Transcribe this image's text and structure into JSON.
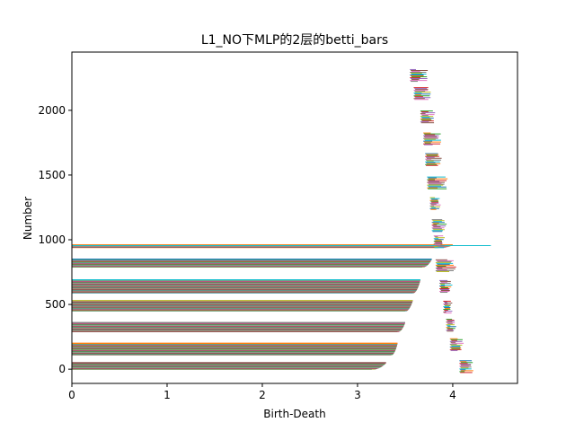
{
  "chart_data": {
    "type": "bar",
    "orientation": "horizontal",
    "title": "L1_NO下MLP的2层的betti_bars",
    "xlabel": "Birth-Death",
    "ylabel": "Number",
    "xlim": [
      0,
      4.68
    ],
    "ylim": [
      -110,
      2450
    ],
    "xticks": [
      0,
      1,
      2,
      3,
      4
    ],
    "yticks": [
      0,
      500,
      1000,
      1500,
      2000
    ],
    "grid": false,
    "legend": "none",
    "series_colors": [
      "#1f77b4",
      "#ff7f0e",
      "#2ca02c",
      "#d62728",
      "#9467bd",
      "#8c564b",
      "#e377c2",
      "#7f7f7f",
      "#bcbd22",
      "#17becf"
    ],
    "bands": [
      {
        "y_start": 0,
        "y_end": 50,
        "x_start": 0,
        "x_end_min": 3.15,
        "x_end_max": 3.3
      },
      {
        "y_start": 110,
        "y_end": 200,
        "x_start": 0,
        "x_end_min": 3.35,
        "x_end_max": 3.42
      },
      {
        "y_start": 290,
        "y_end": 360,
        "x_start": 0,
        "x_end_min": 3.42,
        "x_end_max": 3.5
      },
      {
        "y_start": 450,
        "y_end": 530,
        "x_start": 0,
        "x_end_min": 3.5,
        "x_end_max": 3.58
      },
      {
        "y_start": 590,
        "y_end": 690,
        "x_start": 0,
        "x_end_min": 3.58,
        "x_end_max": 3.66
      },
      {
        "y_start": 790,
        "y_end": 850,
        "x_start": 0,
        "x_end_min": 3.68,
        "x_end_max": 3.78
      },
      {
        "y_start": 940,
        "y_end": 960,
        "x_start": 0,
        "x_end_min": 3.85,
        "x_end_max": 4.0
      }
    ],
    "outlier_bar": {
      "y": 955,
      "x_start": 0,
      "x_end": 4.4
    },
    "short_bar_clusters": [
      {
        "y": 20,
        "x_start": 4.07,
        "x_end": 4.2
      },
      {
        "y": 190,
        "x_start": 3.97,
        "x_end": 4.1
      },
      {
        "y": 340,
        "x_start": 3.93,
        "x_end": 4.02
      },
      {
        "y": 480,
        "x_start": 3.9,
        "x_end": 3.98
      },
      {
        "y": 640,
        "x_start": 3.86,
        "x_end": 3.98
      },
      {
        "y": 800,
        "x_start": 3.82,
        "x_end": 4.02
      },
      {
        "y": 985,
        "x_start": 3.8,
        "x_end": 3.9
      },
      {
        "y": 1110,
        "x_start": 3.78,
        "x_end": 3.92
      },
      {
        "y": 1280,
        "x_start": 3.76,
        "x_end": 3.86
      },
      {
        "y": 1440,
        "x_start": 3.73,
        "x_end": 3.93
      },
      {
        "y": 1620,
        "x_start": 3.71,
        "x_end": 3.87
      },
      {
        "y": 1780,
        "x_start": 3.69,
        "x_end": 3.87
      },
      {
        "y": 1950,
        "x_start": 3.66,
        "x_end": 3.8
      },
      {
        "y": 2130,
        "x_start": 3.59,
        "x_end": 3.76
      },
      {
        "y": 2270,
        "x_start": 3.55,
        "x_end": 3.73
      }
    ]
  }
}
